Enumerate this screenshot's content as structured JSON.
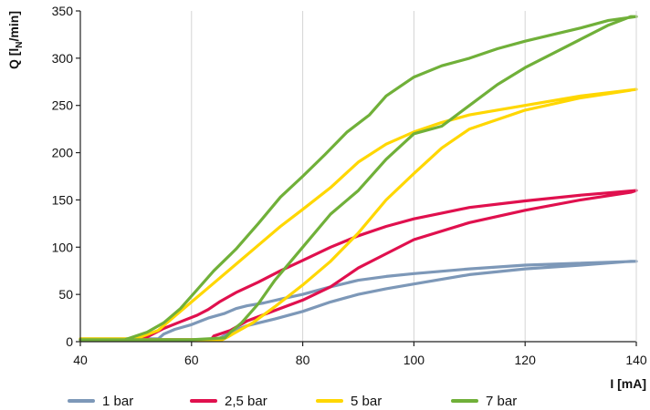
{
  "chart_data": {
    "type": "line",
    "ylabel": "Q [l",
    "ylabel_subscript": "N",
    "ylabel_suffix": "/min]",
    "xlabel": "I [mA]",
    "xlim": [
      40,
      140
    ],
    "ylim": [
      0,
      350
    ],
    "xticks": [
      "40",
      "60",
      "80",
      "100",
      "120",
      "140"
    ],
    "yticks": [
      "0",
      "50",
      "100",
      "150",
      "200",
      "250",
      "300",
      "350"
    ],
    "grid": "vertical",
    "legend_position": "bottom",
    "series": [
      {
        "name": "1 bar",
        "color": "#7d98b8",
        "x": [
          40,
          54,
          55,
          57,
          60,
          63,
          66,
          68,
          70,
          73,
          76,
          80,
          85,
          90,
          95,
          100,
          110,
          120,
          130,
          140,
          139,
          130,
          120,
          110,
          100,
          95,
          90,
          85,
          80,
          75,
          70,
          67,
          65.5,
          64.5,
          60,
          55,
          50,
          40
        ],
        "y": [
          3,
          3,
          8,
          13,
          18,
          25,
          30,
          35,
          38,
          41,
          45,
          50,
          58,
          65,
          69,
          72,
          77,
          81,
          83,
          85,
          85,
          81,
          77,
          71,
          61,
          56,
          50,
          42,
          32,
          24,
          17,
          10,
          5,
          2,
          2,
          2,
          2,
          2
        ]
      },
      {
        "name": "2,5 bar",
        "color": "#e0104e",
        "x": [
          40,
          51,
          53,
          55,
          58,
          61,
          63,
          65,
          68,
          72,
          76,
          80,
          85,
          90,
          95,
          100,
          105,
          110,
          120,
          130,
          140,
          139,
          130,
          120,
          110,
          100,
          95,
          90,
          85,
          80,
          75,
          70,
          67,
          64,
          63.5,
          60,
          55,
          50,
          40
        ],
        "y": [
          2,
          2,
          8,
          14,
          21,
          28,
          34,
          42,
          52,
          63,
          75,
          86,
          100,
          112,
          122,
          130,
          136,
          142,
          149,
          155,
          160,
          158,
          150,
          139,
          126,
          108,
          93,
          78,
          58,
          44,
          33,
          22,
          12,
          6,
          2,
          2,
          2,
          2,
          2
        ]
      },
      {
        "name": "5 bar",
        "color": "#ffd700",
        "x": [
          40,
          50,
          54,
          56,
          58,
          60,
          64,
          68,
          72,
          76,
          80,
          85,
          90,
          95,
          100,
          105,
          110,
          120,
          130,
          140,
          139,
          130,
          120,
          110,
          105,
          100,
          95,
          90,
          85,
          80,
          75,
          71,
          68,
          66.5,
          65.5,
          60,
          55,
          50,
          40
        ],
        "y": [
          3,
          3,
          12,
          22,
          32,
          42,
          62,
          82,
          102,
          122,
          140,
          163,
          190,
          209,
          222,
          232,
          240,
          250,
          260,
          267,
          266,
          258,
          245,
          225,
          205,
          178,
          150,
          115,
          85,
          60,
          37,
          20,
          10,
          5,
          2,
          2,
          2,
          2,
          2
        ]
      },
      {
        "name": "7 bar",
        "color": "#70b039",
        "x": [
          40,
          48,
          52,
          55,
          58,
          61,
          64,
          68,
          72,
          76,
          80,
          84,
          88,
          92,
          95,
          96,
          100,
          105,
          110,
          115,
          120,
          125,
          130,
          135,
          140,
          139,
          135,
          130,
          125,
          120,
          115,
          110,
          105,
          100,
          95,
          90,
          85,
          80,
          75,
          72,
          69,
          67,
          66,
          60,
          55,
          50,
          40
        ],
        "y": [
          2,
          2,
          10,
          20,
          35,
          55,
          75,
          98,
          125,
          153,
          175,
          198,
          222,
          240,
          260,
          264,
          280,
          292,
          300,
          310,
          318,
          325,
          332,
          340,
          344,
          344,
          335,
          320,
          305,
          290,
          272,
          250,
          228,
          220,
          193,
          160,
          135,
          100,
          65,
          40,
          20,
          10,
          4,
          2,
          2,
          2,
          2
        ]
      }
    ]
  }
}
